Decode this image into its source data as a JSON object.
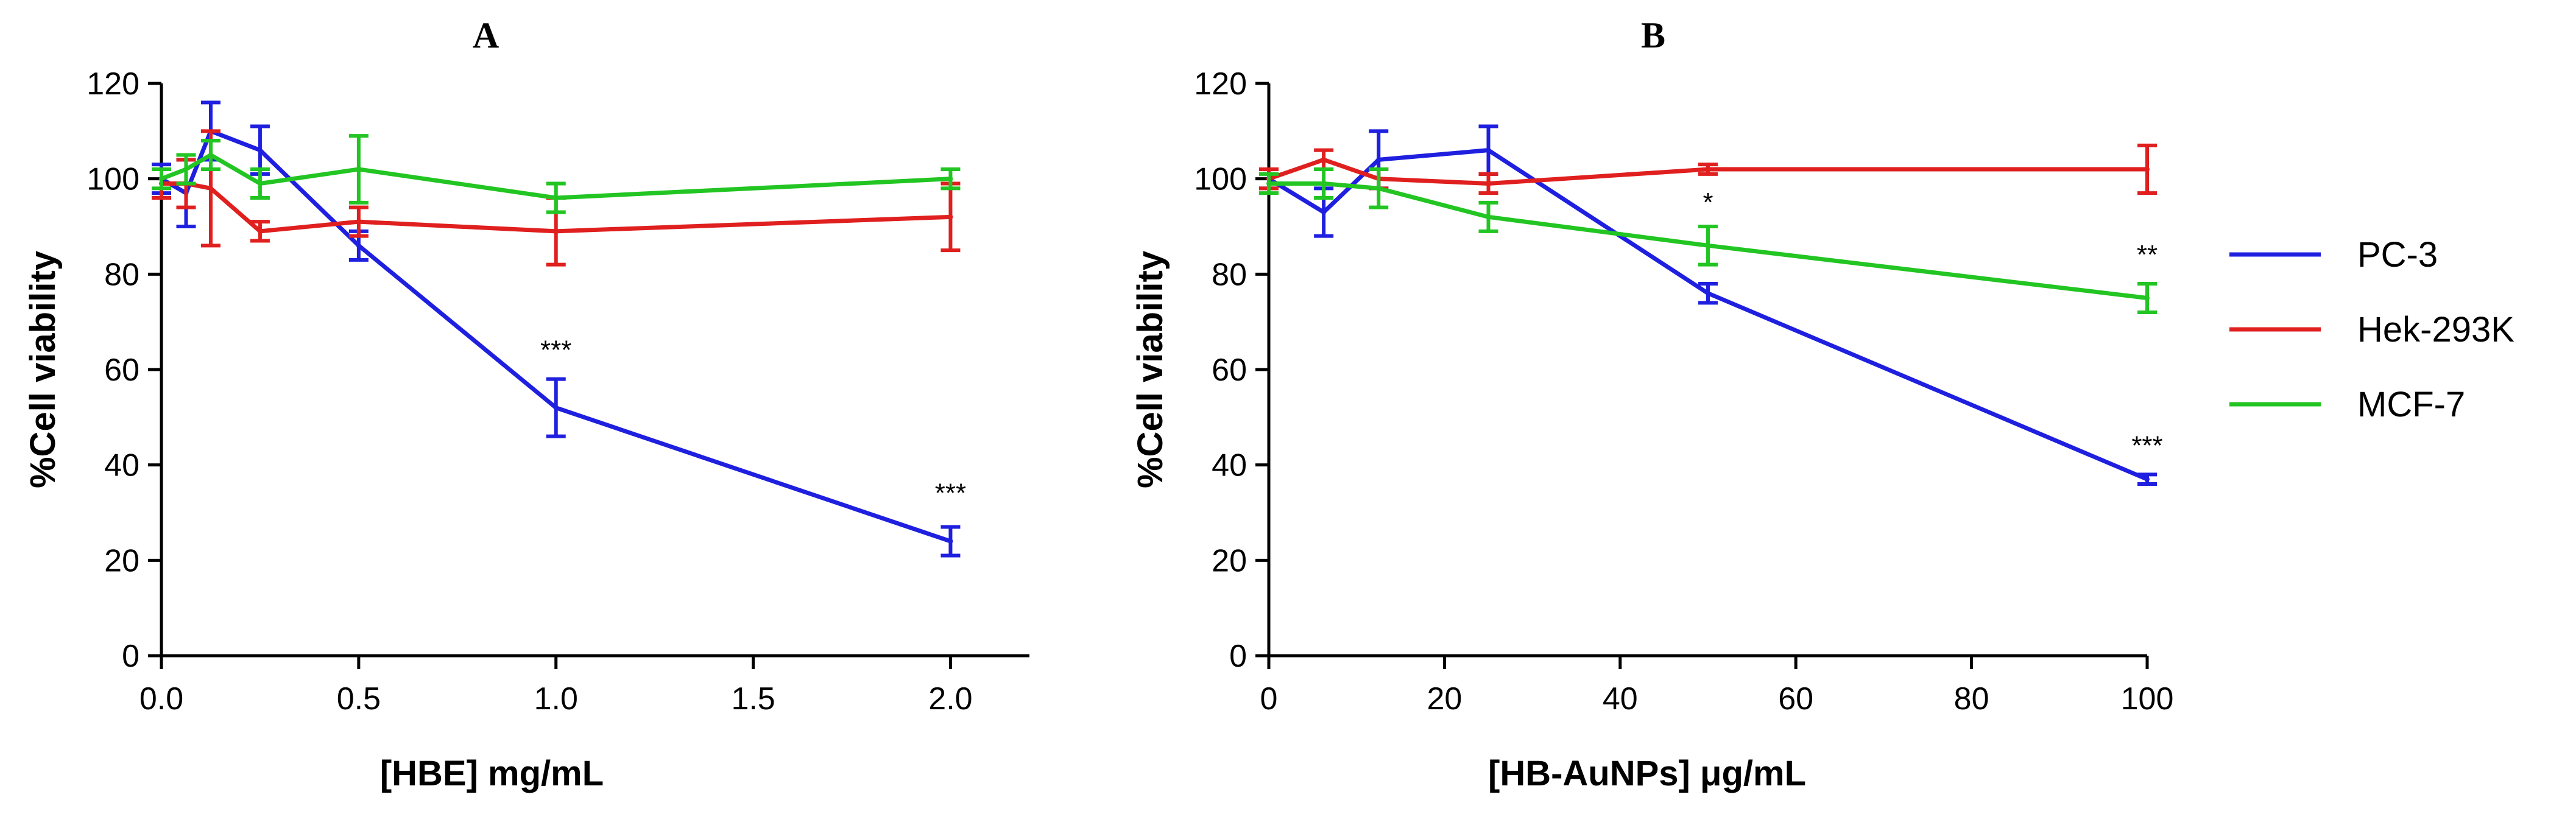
{
  "legend": [
    {
      "name": "PC-3",
      "color": "#1f1fe0"
    },
    {
      "name": "Hek-293K",
      "color": "#e01f1f"
    },
    {
      "name": "MCF-7",
      "color": "#22c522"
    }
  ],
  "chart_data": [
    {
      "type": "line",
      "panel": "A",
      "title": "A",
      "xlabel": "[HBE] mg/mL",
      "ylabel": "%Cell viability",
      "xlim": [
        0,
        2.2
      ],
      "ylim": [
        0,
        120
      ],
      "xticks": [
        0,
        0.5,
        1.0,
        1.5,
        2.0
      ],
      "xtick_labels": [
        "0.0",
        "0.5",
        "1.0",
        "1.5",
        "2.0"
      ],
      "yticks": [
        0,
        20,
        40,
        60,
        80,
        100,
        120
      ],
      "ytick_labels": [
        "0",
        "20",
        "40",
        "60",
        "80",
        "100",
        "120"
      ],
      "series": [
        {
          "name": "PC-3",
          "color": "#1f1fe0",
          "x": [
            0,
            0.0625,
            0.125,
            0.25,
            0.5,
            1.0,
            2.0
          ],
          "y": [
            100,
            97,
            110,
            106,
            86,
            52,
            24
          ],
          "err": [
            3,
            7,
            6,
            5,
            3,
            6,
            3
          ]
        },
        {
          "name": "Hek-293K",
          "color": "#e01f1f",
          "x": [
            0,
            0.0625,
            0.125,
            0.25,
            0.5,
            1.0,
            2.0
          ],
          "y": [
            99,
            99,
            98,
            89,
            91,
            89,
            92
          ],
          "err": [
            3,
            5,
            12,
            2,
            3,
            7,
            7
          ]
        },
        {
          "name": "MCF-7",
          "color": "#22c522",
          "x": [
            0,
            0.0625,
            0.125,
            0.25,
            0.5,
            1.0,
            2.0
          ],
          "y": [
            100,
            102,
            105,
            99,
            102,
            96,
            100
          ],
          "err": [
            2,
            3,
            3,
            3,
            7,
            3,
            2
          ]
        }
      ],
      "annotations": [
        {
          "text": "***",
          "x": 1.0,
          "y": 64
        },
        {
          "text": "***",
          "x": 2.0,
          "y": 34
        }
      ]
    },
    {
      "type": "line",
      "panel": "B",
      "title": "B",
      "xlabel": "[HB-AuNPs] μg/mL",
      "ylabel": "%Cell viability",
      "xlim": [
        0,
        100
      ],
      "ylim": [
        0,
        120
      ],
      "xticks": [
        0,
        20,
        40,
        60,
        80,
        100
      ],
      "xtick_labels": [
        "0",
        "20",
        "40",
        "60",
        "80",
        "100"
      ],
      "yticks": [
        0,
        20,
        40,
        60,
        80,
        100,
        120
      ],
      "ytick_labels": [
        "0",
        "20",
        "40",
        "60",
        "80",
        "100",
        "120"
      ],
      "series": [
        {
          "name": "PC-3",
          "color": "#1f1fe0",
          "x": [
            0,
            6.25,
            12.5,
            25,
            50,
            100
          ],
          "y": [
            100,
            93,
            104,
            106,
            76,
            37
          ],
          "err": [
            2,
            5,
            6,
            5,
            2,
            1
          ]
        },
        {
          "name": "Hek-293K",
          "color": "#e01f1f",
          "x": [
            0,
            6.25,
            12.5,
            25,
            50,
            100
          ],
          "y": [
            100,
            104,
            100,
            99,
            102,
            102
          ],
          "err": [
            2,
            2,
            2,
            2,
            1,
            5
          ]
        },
        {
          "name": "MCF-7",
          "color": "#22c522",
          "x": [
            0,
            6.25,
            12.5,
            25,
            50,
            100
          ],
          "y": [
            99,
            99,
            98,
            92,
            86,
            75
          ],
          "err": [
            2,
            3,
            4,
            3,
            4,
            3
          ]
        }
      ],
      "annotations": [
        {
          "text": "*",
          "x": 50,
          "y": 95
        },
        {
          "text": "**",
          "x": 100,
          "y": 84
        },
        {
          "text": "***",
          "x": 100,
          "y": 44
        }
      ]
    }
  ]
}
